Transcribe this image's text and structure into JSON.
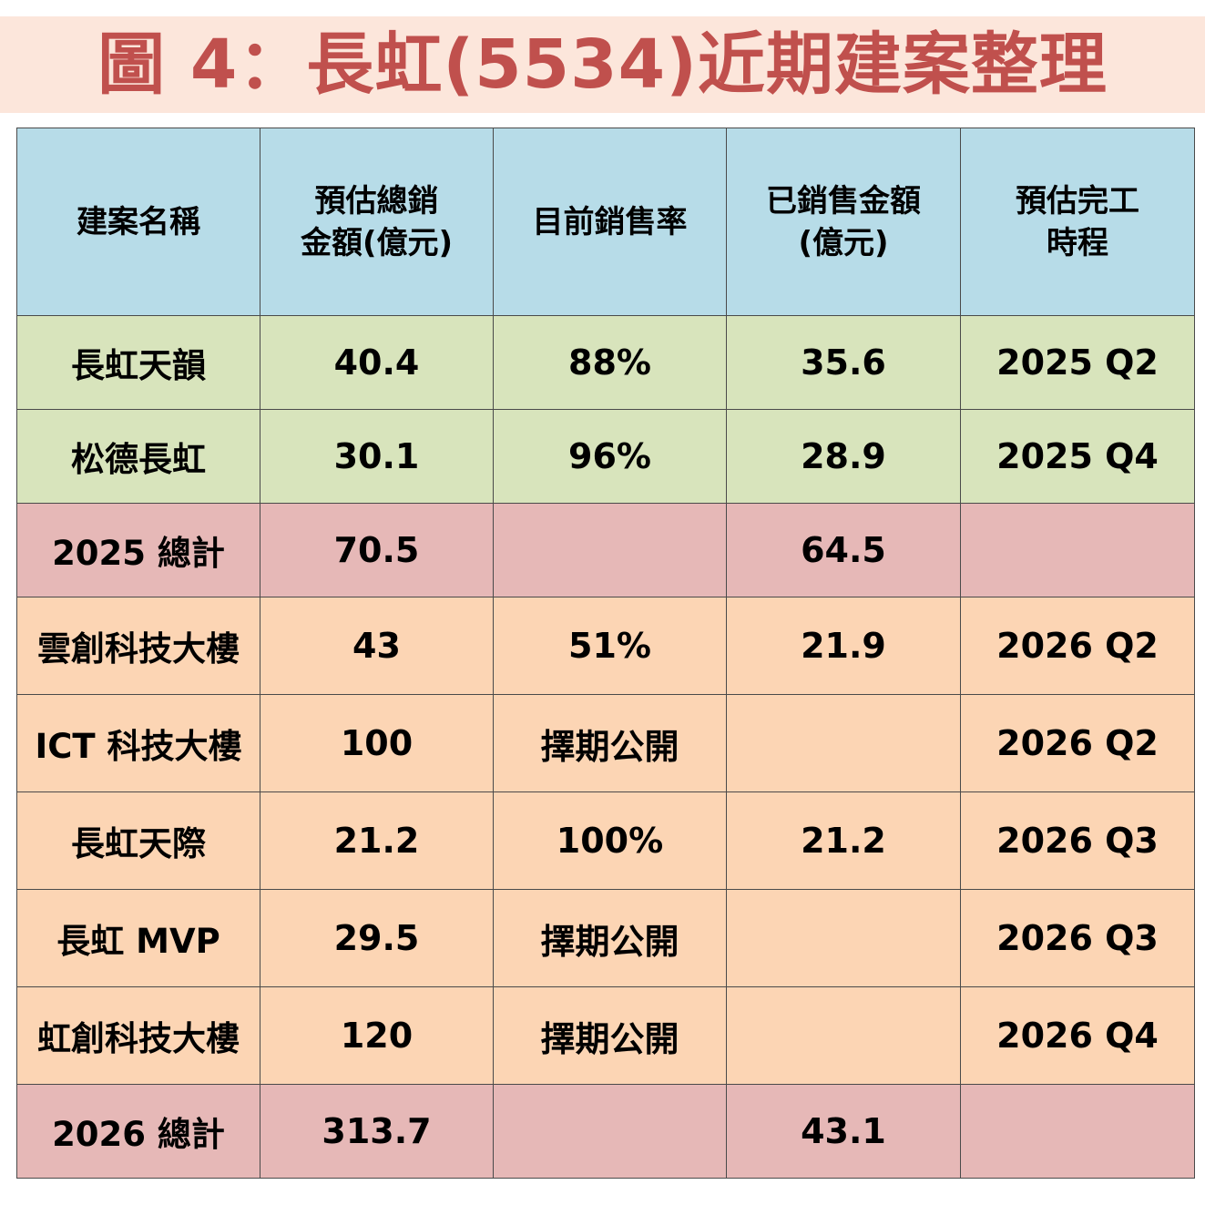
{
  "title": "圖 4：長虹(5534)近期建案整理",
  "colors": {
    "title_text": "#c0504d",
    "title_band": "#fce6db",
    "header_bg": "#b7dce8",
    "row_2025_bg": "#d8e4bc",
    "row_2026_bg": "#fcd5b4",
    "total_bg": "#e6b8b7"
  },
  "table": {
    "headers": [
      "建案名稱",
      "預估總銷\n金額(億元)",
      "目前銷售率",
      "已銷售金額\n(億元)",
      "預估完工\n時程"
    ],
    "header_lines": [
      [
        "建案名稱"
      ],
      [
        "預估總銷",
        "金額(億元)"
      ],
      [
        "目前銷售率"
      ],
      [
        "已銷售金額",
        "(億元)"
      ],
      [
        "預估完工",
        "時程"
      ]
    ],
    "rows": [
      {
        "name": "長虹天韻",
        "total": "40.4",
        "rate": "88%",
        "sold": "35.6",
        "completion": "2025 Q2",
        "group": "2025"
      },
      {
        "name": "松德長虹",
        "total": "30.1",
        "rate": "96%",
        "sold": "28.9",
        "completion": "2025 Q4",
        "group": "2025"
      },
      {
        "name": "2025 總計",
        "total": "70.5",
        "rate": "",
        "sold": "64.5",
        "completion": "",
        "group": "total"
      },
      {
        "name": "雲創科技大樓",
        "total": "43",
        "rate": "51%",
        "sold": "21.9",
        "completion": "2026 Q2",
        "group": "2026"
      },
      {
        "name": "ICT 科技大樓",
        "total": "100",
        "rate": "擇期公開",
        "sold": "",
        "completion": "2026 Q2",
        "group": "2026"
      },
      {
        "name": "長虹天際",
        "total": "21.2",
        "rate": "100%",
        "sold": "21.2",
        "completion": "2026 Q3",
        "group": "2026"
      },
      {
        "name": "長虹 MVP",
        "total": "29.5",
        "rate": "擇期公開",
        "sold": "",
        "completion": "2026 Q3",
        "group": "2026"
      },
      {
        "name": "虹創科技大樓",
        "total": "120",
        "rate": "擇期公開",
        "sold": "",
        "completion": "2026 Q4",
        "group": "2026"
      },
      {
        "name": "2026 總計",
        "total": "313.7",
        "rate": "",
        "sold": "43.1",
        "completion": "",
        "group": "total"
      }
    ]
  }
}
